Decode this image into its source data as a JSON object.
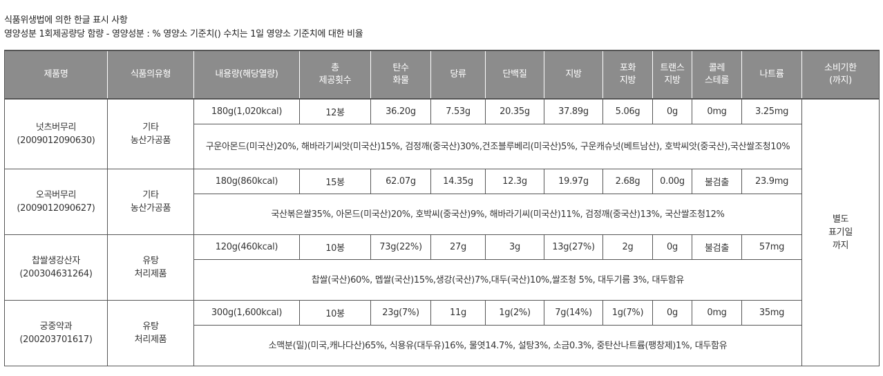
{
  "heading": {
    "line1": "식품위생법에 의한 한글 표시 사항",
    "line2": "영양성분 1회제공량당 함량 - 영양성분 : % 영양소 기준치() 수치는 1일 영양소 기준치에 대한 비율"
  },
  "table": {
    "headers": [
      "제품명",
      "식품의유형",
      "내용량(해당열량)",
      "총\n제공횟수",
      "탄수\n화물",
      "당류",
      "단백질",
      "지방",
      "포화\n지방",
      "트랜스\n지방",
      "콜레\n스테롤",
      "나트륨",
      "소비기한\n(까지)"
    ],
    "expiry": "별도\n표기일\n까지",
    "products": [
      {
        "name": "넛츠버무리",
        "code": "(2009012090630)",
        "type": "기타\n농산가공품",
        "values": [
          "180g(1,020kcal)",
          "12봉",
          "36.20g",
          "7.53g",
          "20.35g",
          "37.89g",
          "5.06g",
          "0g",
          "0mg",
          "3.25mg"
        ],
        "ingredients": "구운아몬드(미국산)20%, 해바라기씨앗(미국산)15%, 검정깨(중국산)30%,건조블루베리(미국산)5%, 구운캐슈넛(베트남산), 호박씨앗(중국산),국산쌀조청10%"
      },
      {
        "name": "오곡버무리",
        "code": "(2009012090627)",
        "type": "기타\n농산가공품",
        "values": [
          "180g(860kcal)",
          "15봉",
          "62.07g",
          "14.35g",
          "12.3g",
          "19.97g",
          "2.68g",
          "0.00g",
          "불검출",
          "23.9mg"
        ],
        "ingredients": "국산볶은쌀35%, 아몬드(미국산)20%, 호박씨(중국산)9%, 해바라기씨(미국산)11%, 검정깨(중국산)13%, 국산쌀조청12%"
      },
      {
        "name": "찹쌀생강산자",
        "code": "(200304631264)",
        "type": "유탕\n처리제품",
        "values": [
          "120g(460kcal)",
          "10봉",
          "73g(22%)",
          "27g",
          "3g",
          "13g(27%)",
          "2g",
          "0g",
          "불검출",
          "57mg"
        ],
        "ingredients": "찹쌀(국산)60%, 멥쌀(국산)15%,생강(국산)7%,대두(국산)10%,쌀조청 5%, 대두기름 3%, 대두함유"
      },
      {
        "name": "궁중약과",
        "code": "(200203701617)",
        "type": "유탕\n처리제품",
        "values": [
          "300g(1,600kcal)",
          "10봉",
          "23g(7%)",
          "11g",
          "1g(2%)",
          "7g(14%)",
          "1g(7%)",
          "0g",
          "0mg",
          "35mg"
        ],
        "ingredients": "소맥분(밀)(미국,캐나다산)65%, 식용유(대두유)16%, 물엿14.7%, 설탕3%, 소금0.3%, 중탄산나트륨(팽창제)1%, 대두함유"
      }
    ]
  }
}
